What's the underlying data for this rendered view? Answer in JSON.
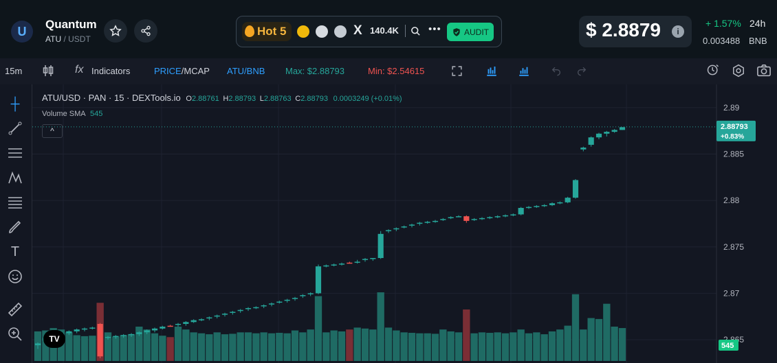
{
  "header": {
    "token_name": "Quantum",
    "base": "ATU",
    "quote": "USDT",
    "logo_letter": "U",
    "hot_label": "Hot 5",
    "followers": "140.4K",
    "x_glyph": "X",
    "audit_label": "AUDIT",
    "price": "$ 2.8879",
    "info_glyph": "i",
    "change": "+ 1.57%",
    "period": "24h",
    "bnb_value": "0.003488",
    "bnb_label": "BNB",
    "dots": "•••"
  },
  "toolbar": {
    "interval": "15m",
    "indicators": "Indicators",
    "price_label": "PRICE",
    "mcap_label": "MCAP",
    "slash": "/",
    "atu_bnb": "ATU/BNB",
    "max": "Max: $2.88793",
    "min": "Min: $2.54615"
  },
  "legend": {
    "symbol": "ATU/USD · PAN · 15 · DEXTools.io",
    "o_label": "O",
    "o": "2.88761",
    "h_label": "H",
    "h": "2.88793",
    "l_label": "L",
    "l": "2.88763",
    "c_label": "C",
    "c": "2.88793",
    "change": "0.0003249 (+0.01%)",
    "volume_label": "Volume SMA",
    "volume_value": "545",
    "collapse_glyph": "^",
    "tv_logo": "TV"
  },
  "colors": {
    "up": "#26a69a",
    "down": "#ef5350",
    "up_vol": "#1f6b64",
    "down_vol": "#7a2e35",
    "accent": "#16c784"
  },
  "chart_data": {
    "type": "candlestick",
    "y_ticks": [
      "2.89",
      "2.885",
      "2.88",
      "2.875",
      "2.87",
      "2.865"
    ],
    "ylim": [
      2.8633,
      2.8914
    ],
    "last_price_label": "2.88793",
    "last_change_label": "+0.83%",
    "last_price": 2.88793,
    "volume_badge": "545",
    "candles": [
      {
        "o": 2.8644,
        "h": 2.8647,
        "l": 2.864,
        "c": 2.8646,
        "v": 310,
        "d": false
      },
      {
        "o": 2.8649,
        "h": 2.8653,
        "l": 2.8646,
        "c": 2.8652,
        "v": 320,
        "d": false
      },
      {
        "o": 2.8652,
        "h": 2.8656,
        "l": 2.865,
        "c": 2.8655,
        "v": 345,
        "d": false
      },
      {
        "o": 2.8655,
        "h": 2.8658,
        "l": 2.8653,
        "c": 2.8657,
        "v": 330,
        "d": false
      },
      {
        "o": 2.8657,
        "h": 2.866,
        "l": 2.8655,
        "c": 2.8659,
        "v": 300,
        "d": false
      },
      {
        "o": 2.8659,
        "h": 2.8662,
        "l": 2.8657,
        "c": 2.8661,
        "v": 270,
        "d": false
      },
      {
        "o": 2.8661,
        "h": 2.8663,
        "l": 2.8659,
        "c": 2.8662,
        "v": 260,
        "d": false
      },
      {
        "o": 2.8662,
        "h": 2.8664,
        "l": 2.8661,
        "c": 2.8663,
        "v": 265,
        "d": false
      },
      {
        "o": 2.8667,
        "h": 2.8668,
        "l": 2.863,
        "c": 2.8632,
        "v": 610,
        "d": true
      },
      {
        "o": 2.8652,
        "h": 2.8654,
        "l": 2.865,
        "c": 2.8653,
        "v": 300,
        "d": false
      },
      {
        "o": 2.8653,
        "h": 2.8655,
        "l": 2.8651,
        "c": 2.8654,
        "v": 255,
        "d": false
      },
      {
        "o": 2.8654,
        "h": 2.8656,
        "l": 2.8652,
        "c": 2.8655,
        "v": 270,
        "d": false
      },
      {
        "o": 2.8655,
        "h": 2.8657,
        "l": 2.8653,
        "c": 2.8656,
        "v": 280,
        "d": false
      },
      {
        "o": 2.8656,
        "h": 2.8659,
        "l": 2.8654,
        "c": 2.8658,
        "v": 360,
        "d": false
      },
      {
        "o": 2.8658,
        "h": 2.8661,
        "l": 2.8656,
        "c": 2.866,
        "v": 330,
        "d": false
      },
      {
        "o": 2.866,
        "h": 2.8663,
        "l": 2.8658,
        "c": 2.8662,
        "v": 290,
        "d": false
      },
      {
        "o": 2.8662,
        "h": 2.8665,
        "l": 2.8661,
        "c": 2.8664,
        "v": 265,
        "d": false
      },
      {
        "o": 2.8665,
        "h": 2.8666,
        "l": 2.8664,
        "c": 2.8665,
        "v": 250,
        "d": true
      },
      {
        "o": 2.8666,
        "h": 2.8668,
        "l": 2.8664,
        "c": 2.8667,
        "v": 360,
        "d": false
      },
      {
        "o": 2.8667,
        "h": 2.867,
        "l": 2.8665,
        "c": 2.8669,
        "v": 330,
        "d": false
      },
      {
        "o": 2.8669,
        "h": 2.8672,
        "l": 2.8668,
        "c": 2.8671,
        "v": 300,
        "d": false
      },
      {
        "o": 2.8671,
        "h": 2.8673,
        "l": 2.867,
        "c": 2.8672,
        "v": 290,
        "d": false
      },
      {
        "o": 2.8673,
        "h": 2.8675,
        "l": 2.8671,
        "c": 2.8674,
        "v": 280,
        "d": false
      },
      {
        "o": 2.8675,
        "h": 2.8677,
        "l": 2.8673,
        "c": 2.8676,
        "v": 300,
        "d": false
      },
      {
        "o": 2.8677,
        "h": 2.8679,
        "l": 2.8675,
        "c": 2.8678,
        "v": 280,
        "d": false
      },
      {
        "o": 2.8679,
        "h": 2.8681,
        "l": 2.8677,
        "c": 2.868,
        "v": 285,
        "d": false
      },
      {
        "o": 2.8681,
        "h": 2.8683,
        "l": 2.8679,
        "c": 2.8682,
        "v": 300,
        "d": false
      },
      {
        "o": 2.8683,
        "h": 2.8685,
        "l": 2.8681,
        "c": 2.8684,
        "v": 300,
        "d": false
      },
      {
        "o": 2.8684,
        "h": 2.8686,
        "l": 2.8683,
        "c": 2.8685,
        "v": 290,
        "d": false
      },
      {
        "o": 2.8686,
        "h": 2.8688,
        "l": 2.8684,
        "c": 2.8687,
        "v": 300,
        "d": false
      },
      {
        "o": 2.8688,
        "h": 2.869,
        "l": 2.8686,
        "c": 2.8689,
        "v": 290,
        "d": false
      },
      {
        "o": 2.869,
        "h": 2.8692,
        "l": 2.8689,
        "c": 2.8691,
        "v": 295,
        "d": false
      },
      {
        "o": 2.8692,
        "h": 2.8694,
        "l": 2.869,
        "c": 2.8693,
        "v": 290,
        "d": false
      },
      {
        "o": 2.8694,
        "h": 2.8696,
        "l": 2.8692,
        "c": 2.8695,
        "v": 320,
        "d": false
      },
      {
        "o": 2.8697,
        "h": 2.8699,
        "l": 2.8695,
        "c": 2.8698,
        "v": 300,
        "d": false
      },
      {
        "o": 2.8699,
        "h": 2.8701,
        "l": 2.8697,
        "c": 2.87,
        "v": 330,
        "d": false
      },
      {
        "o": 2.87,
        "h": 2.8731,
        "l": 2.8699,
        "c": 2.8729,
        "v": 680,
        "d": false
      },
      {
        "o": 2.8729,
        "h": 2.8731,
        "l": 2.8728,
        "c": 2.873,
        "v": 300,
        "d": false
      },
      {
        "o": 2.873,
        "h": 2.8732,
        "l": 2.8729,
        "c": 2.8731,
        "v": 320,
        "d": false
      },
      {
        "o": 2.8731,
        "h": 2.8733,
        "l": 2.873,
        "c": 2.8732,
        "v": 310,
        "d": false
      },
      {
        "o": 2.8733,
        "h": 2.8734,
        "l": 2.8732,
        "c": 2.8733,
        "v": 330,
        "d": true
      },
      {
        "o": 2.8733,
        "h": 2.8736,
        "l": 2.8732,
        "c": 2.8734,
        "v": 350,
        "d": false
      },
      {
        "o": 2.8736,
        "h": 2.8738,
        "l": 2.8734,
        "c": 2.8737,
        "v": 340,
        "d": false
      },
      {
        "o": 2.8737,
        "h": 2.8738,
        "l": 2.8735,
        "c": 2.8738,
        "v": 330,
        "d": false
      },
      {
        "o": 2.8738,
        "h": 2.8767,
        "l": 2.8737,
        "c": 2.8764,
        "v": 720,
        "d": false
      },
      {
        "o": 2.8767,
        "h": 2.8769,
        "l": 2.8765,
        "c": 2.8768,
        "v": 350,
        "d": false
      },
      {
        "o": 2.8769,
        "h": 2.8771,
        "l": 2.8767,
        "c": 2.877,
        "v": 320,
        "d": false
      },
      {
        "o": 2.8771,
        "h": 2.8773,
        "l": 2.877,
        "c": 2.8772,
        "v": 300,
        "d": false
      },
      {
        "o": 2.8773,
        "h": 2.8775,
        "l": 2.8771,
        "c": 2.8774,
        "v": 295,
        "d": false
      },
      {
        "o": 2.8775,
        "h": 2.8777,
        "l": 2.8773,
        "c": 2.8776,
        "v": 290,
        "d": false
      },
      {
        "o": 2.8776,
        "h": 2.8778,
        "l": 2.8775,
        "c": 2.8777,
        "v": 290,
        "d": false
      },
      {
        "o": 2.8777,
        "h": 2.8779,
        "l": 2.8776,
        "c": 2.8778,
        "v": 285,
        "d": false
      },
      {
        "o": 2.8779,
        "h": 2.8781,
        "l": 2.8778,
        "c": 2.878,
        "v": 330,
        "d": false
      },
      {
        "o": 2.8781,
        "h": 2.8783,
        "l": 2.878,
        "c": 2.8782,
        "v": 310,
        "d": false
      },
      {
        "o": 2.8783,
        "h": 2.8784,
        "l": 2.8782,
        "c": 2.8783,
        "v": 300,
        "d": false
      },
      {
        "o": 2.8783,
        "h": 2.8784,
        "l": 2.8776,
        "c": 2.8778,
        "v": 540,
        "d": true
      },
      {
        "o": 2.8779,
        "h": 2.8781,
        "l": 2.8778,
        "c": 2.878,
        "v": 290,
        "d": false
      },
      {
        "o": 2.878,
        "h": 2.8782,
        "l": 2.8779,
        "c": 2.8781,
        "v": 300,
        "d": false
      },
      {
        "o": 2.8781,
        "h": 2.8783,
        "l": 2.878,
        "c": 2.8782,
        "v": 295,
        "d": false
      },
      {
        "o": 2.8782,
        "h": 2.8784,
        "l": 2.8781,
        "c": 2.8783,
        "v": 300,
        "d": false
      },
      {
        "o": 2.8783,
        "h": 2.8785,
        "l": 2.8782,
        "c": 2.8784,
        "v": 290,
        "d": false
      },
      {
        "o": 2.8784,
        "h": 2.8786,
        "l": 2.8783,
        "c": 2.8785,
        "v": 300,
        "d": false
      },
      {
        "o": 2.8785,
        "h": 2.8793,
        "l": 2.8784,
        "c": 2.8792,
        "v": 330,
        "d": false
      },
      {
        "o": 2.8792,
        "h": 2.8794,
        "l": 2.8791,
        "c": 2.8793,
        "v": 290,
        "d": false
      },
      {
        "o": 2.8793,
        "h": 2.8795,
        "l": 2.8792,
        "c": 2.8794,
        "v": 300,
        "d": false
      },
      {
        "o": 2.8794,
        "h": 2.8796,
        "l": 2.8793,
        "c": 2.8795,
        "v": 280,
        "d": false
      },
      {
        "o": 2.8795,
        "h": 2.8798,
        "l": 2.8794,
        "c": 2.8797,
        "v": 310,
        "d": false
      },
      {
        "o": 2.8797,
        "h": 2.8799,
        "l": 2.8796,
        "c": 2.8798,
        "v": 330,
        "d": false
      },
      {
        "o": 2.8798,
        "h": 2.8804,
        "l": 2.8797,
        "c": 2.8803,
        "v": 370,
        "d": false
      },
      {
        "o": 2.8803,
        "h": 2.8823,
        "l": 2.8802,
        "c": 2.8822,
        "v": 700,
        "d": false
      },
      {
        "o": 2.8855,
        "h": 2.8858,
        "l": 2.8853,
        "c": 2.8857,
        "v": 330,
        "d": false
      },
      {
        "o": 2.886,
        "h": 2.8869,
        "l": 2.8858,
        "c": 2.8868,
        "v": 450,
        "d": false
      },
      {
        "o": 2.8868,
        "h": 2.8873,
        "l": 2.8866,
        "c": 2.8872,
        "v": 440,
        "d": false
      },
      {
        "o": 2.8872,
        "h": 2.8875,
        "l": 2.8869,
        "c": 2.8874,
        "v": 600,
        "d": false
      },
      {
        "o": 2.8874,
        "h": 2.8877,
        "l": 2.8873,
        "c": 2.8876,
        "v": 360,
        "d": false
      },
      {
        "o": 2.8876,
        "h": 2.8879,
        "l": 2.8876,
        "c": 2.8879,
        "v": 345,
        "d": false
      }
    ]
  }
}
